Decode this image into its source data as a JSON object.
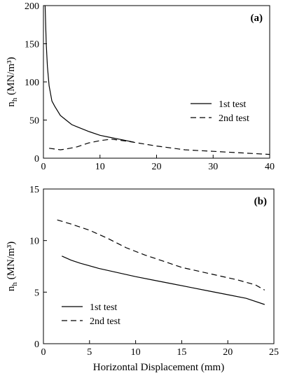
{
  "chart_data": [
    {
      "type": "line",
      "panel_label": "(a)",
      "ylabel": "n",
      "ylabel_sub": "h",
      "ylabel_unit": "(MN/m³)",
      "xlabel": "",
      "xlim": [
        0,
        40
      ],
      "ylim": [
        0,
        200
      ],
      "xticks": [
        0,
        10,
        20,
        30,
        40
      ],
      "yticks": [
        0,
        50,
        100,
        150,
        200
      ],
      "grid": false,
      "legend_position": "right",
      "series": [
        {
          "name": "1st test",
          "style": "solid",
          "points": [
            [
              0.3,
              200
            ],
            [
              0.5,
              150
            ],
            [
              0.7,
              120
            ],
            [
              1.0,
              95
            ],
            [
              1.5,
              75
            ],
            [
              2.0,
              68
            ],
            [
              3.0,
              56
            ],
            [
              4.0,
              50
            ],
            [
              5.0,
              44
            ],
            [
              6.0,
              41
            ],
            [
              8.0,
              35
            ],
            [
              10.0,
              30
            ],
            [
              12.0,
              27
            ],
            [
              14.0,
              24
            ],
            [
              16.0,
              21
            ]
          ]
        },
        {
          "name": "2nd test",
          "style": "dashed",
          "points": [
            [
              1.0,
              13
            ],
            [
              2.0,
              12
            ],
            [
              3.0,
              11
            ],
            [
              4.0,
              12
            ],
            [
              6.0,
              15
            ],
            [
              8.0,
              20
            ],
            [
              10.0,
              23
            ],
            [
              12.0,
              25
            ],
            [
              15.0,
              22
            ],
            [
              20.0,
              16
            ],
            [
              25.0,
              11
            ],
            [
              30.0,
              9
            ],
            [
              35.0,
              7
            ],
            [
              40.0,
              5
            ]
          ]
        }
      ]
    },
    {
      "type": "line",
      "panel_label": "(b)",
      "ylabel": "n",
      "ylabel_sub": "h",
      "ylabel_unit": "(MN/m³)",
      "xlabel": "Horizontal Displacement (mm)",
      "xlim": [
        0,
        25
      ],
      "ylim": [
        0,
        15
      ],
      "xticks": [
        0,
        5,
        10,
        15,
        20,
        25
      ],
      "yticks": [
        0,
        5,
        10,
        15
      ],
      "grid": false,
      "legend_position": "bottom-left",
      "series": [
        {
          "name": "1st test",
          "style": "solid",
          "points": [
            [
              2.0,
              8.5
            ],
            [
              3.0,
              8.1
            ],
            [
              4.0,
              7.8
            ],
            [
              6.0,
              7.3
            ],
            [
              8.0,
              6.9
            ],
            [
              10.0,
              6.5
            ],
            [
              12.0,
              6.15
            ],
            [
              14.0,
              5.8
            ],
            [
              16.0,
              5.45
            ],
            [
              18.0,
              5.1
            ],
            [
              20.0,
              4.75
            ],
            [
              22.0,
              4.4
            ],
            [
              24.0,
              3.8
            ]
          ]
        },
        {
          "name": "2nd test",
          "style": "dashed",
          "points": [
            [
              1.5,
              12.0
            ],
            [
              3.0,
              11.6
            ],
            [
              5.0,
              11.0
            ],
            [
              7.0,
              10.2
            ],
            [
              9.0,
              9.3
            ],
            [
              11.0,
              8.6
            ],
            [
              13.0,
              8.0
            ],
            [
              15.0,
              7.4
            ],
            [
              17.0,
              7.0
            ],
            [
              19.0,
              6.6
            ],
            [
              21.0,
              6.2
            ],
            [
              23.0,
              5.7
            ],
            [
              24.0,
              5.2
            ]
          ]
        }
      ]
    }
  ]
}
